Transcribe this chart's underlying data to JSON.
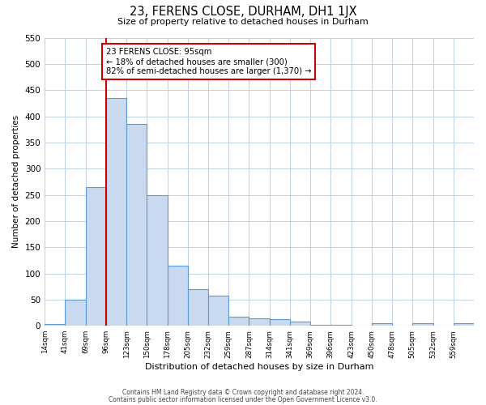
{
  "title": "23, FERENS CLOSE, DURHAM, DH1 1JX",
  "subtitle": "Size of property relative to detached houses in Durham",
  "xlabel": "Distribution of detached houses by size in Durham",
  "ylabel": "Number of detached properties",
  "bin_labels": [
    "14sqm",
    "41sqm",
    "69sqm",
    "96sqm",
    "123sqm",
    "150sqm",
    "178sqm",
    "205sqm",
    "232sqm",
    "259sqm",
    "287sqm",
    "314sqm",
    "341sqm",
    "369sqm",
    "396sqm",
    "423sqm",
    "450sqm",
    "478sqm",
    "505sqm",
    "532sqm",
    "559sqm"
  ],
  "bar_values": [
    3,
    50,
    265,
    435,
    385,
    250,
    115,
    70,
    58,
    18,
    15,
    12,
    8,
    2,
    2,
    0,
    5,
    0,
    5,
    0,
    5
  ],
  "bar_color": "#c8d9f0",
  "bar_edge_color": "#5b9bd5",
  "property_line_index": 3,
  "property_line_color": "#cc0000",
  "annotation_text": "23 FERENS CLOSE: 95sqm\n← 18% of detached houses are smaller (300)\n82% of semi-detached houses are larger (1,370) →",
  "annotation_box_color": "#ffffff",
  "annotation_box_edge_color": "#cc0000",
  "ylim": [
    0,
    550
  ],
  "yticks": [
    0,
    50,
    100,
    150,
    200,
    250,
    300,
    350,
    400,
    450,
    500,
    550
  ],
  "footer_line1": "Contains HM Land Registry data © Crown copyright and database right 2024.",
  "footer_line2": "Contains public sector information licensed under the Open Government Licence v3.0.",
  "background_color": "#ffffff",
  "grid_color": "#c0d0e8"
}
